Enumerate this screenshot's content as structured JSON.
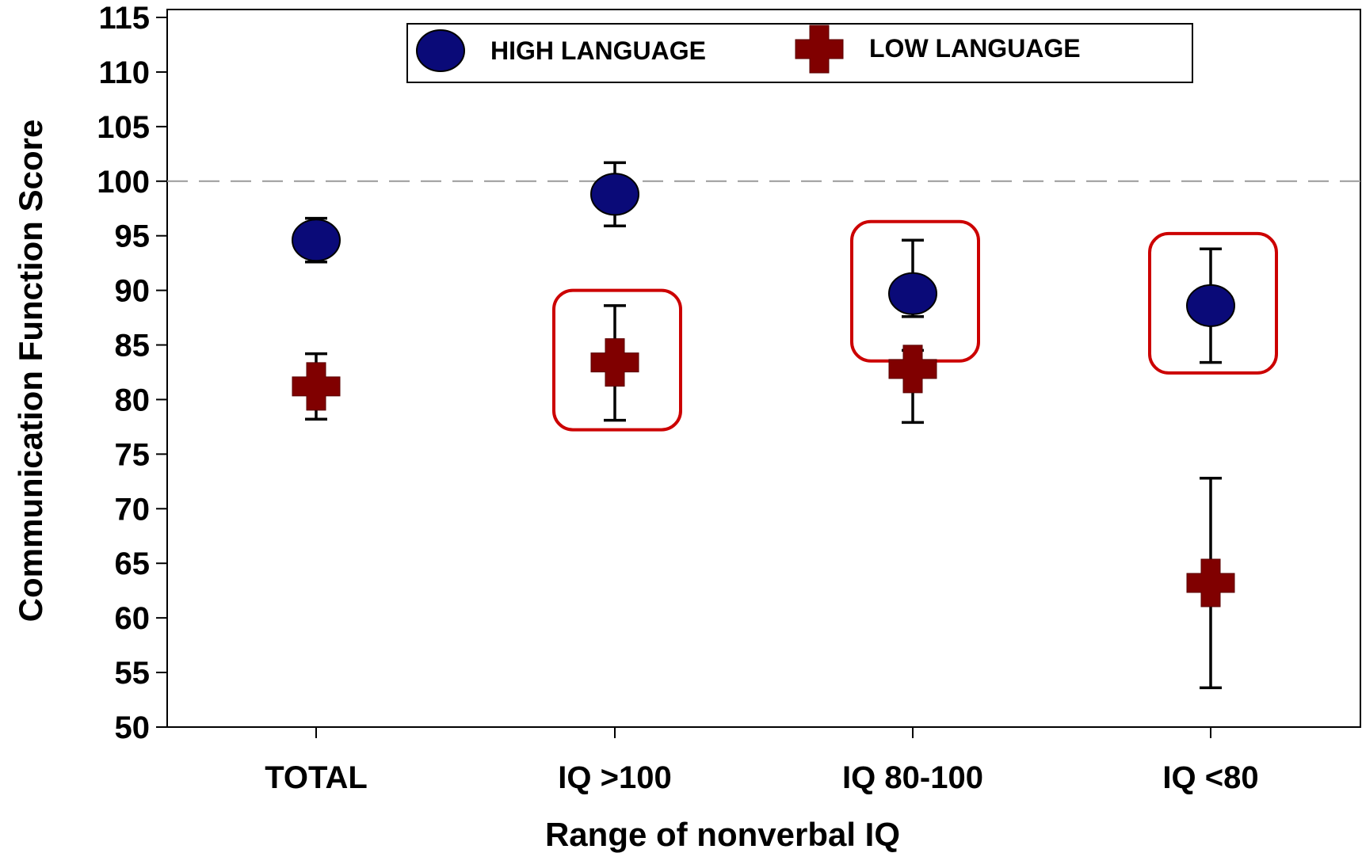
{
  "chart_data": {
    "type": "scatter",
    "categories": [
      "TOTAL",
      "IQ >100",
      "IQ 80-100",
      "IQ <80"
    ],
    "xlabel": "Range of nonverbal IQ",
    "ylabel": "Communication Function Score",
    "ylim": [
      50,
      115
    ],
    "yticks": [
      50,
      55,
      60,
      65,
      70,
      75,
      80,
      85,
      90,
      95,
      100,
      105,
      110,
      115
    ],
    "reference_line": 100,
    "grid": false,
    "legend_position": "top",
    "series": [
      {
        "name": "HIGH LANGUAGE",
        "marker": "circle",
        "color": "#0a0a78",
        "values": [
          94.6,
          98.8,
          89.7,
          88.6
        ],
        "err_low": [
          92.6,
          95.9,
          87.6,
          83.4
        ],
        "err_high": [
          96.6,
          101.7,
          94.6,
          93.8
        ]
      },
      {
        "name": "LOW LANGUAGE",
        "marker": "cross",
        "color": "#800000",
        "values": [
          81.2,
          83.4,
          82.8,
          63.2
        ],
        "err_low": [
          78.2,
          78.1,
          77.9,
          53.6
        ],
        "err_high": [
          84.2,
          88.6,
          84.5,
          72.8
        ]
      }
    ],
    "highlight_boxes": [
      {
        "category": "IQ >100",
        "series": "LOW LANGUAGE",
        "color": "#cc0000"
      },
      {
        "category": "IQ 80-100",
        "series": "HIGH LANGUAGE",
        "color": "#cc0000"
      },
      {
        "category": "IQ <80",
        "series": "HIGH LANGUAGE",
        "color": "#cc0000"
      }
    ]
  }
}
